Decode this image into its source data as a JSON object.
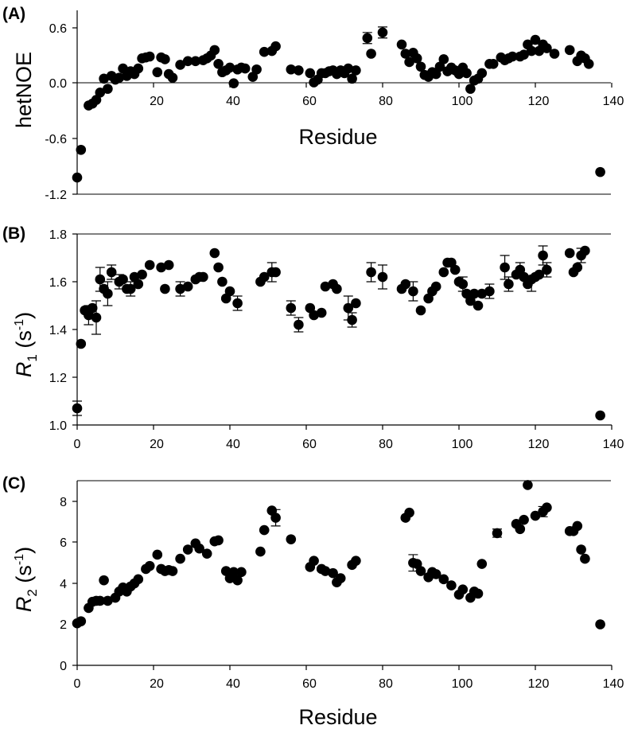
{
  "figure_labels": [
    "(A)",
    "(B)",
    "(C)"
  ],
  "chart_data": [
    {
      "type": "scatter",
      "panel": "(A)",
      "xlabel": "Residue",
      "ylabel": "hetNOE",
      "xlim": [
        0,
        140
      ],
      "ylim": [
        -1.2,
        0.9
      ],
      "xticks": [
        "20",
        "40",
        "60",
        "80",
        "100",
        "120",
        "140"
      ],
      "yticks": [
        "0.6",
        "0.0",
        "-0.6",
        "-1.2"
      ],
      "ytick_values": [
        0.6,
        0.0,
        -0.6,
        -1.2
      ],
      "x": [
        0,
        1,
        3,
        4,
        5,
        6,
        7,
        8,
        9,
        10,
        11,
        12,
        13,
        14,
        15,
        16,
        17,
        18,
        19,
        21,
        22,
        23,
        24,
        25,
        27,
        29,
        31,
        33,
        34,
        35,
        36,
        37,
        38,
        39,
        40,
        41,
        42,
        43,
        44,
        46,
        47,
        49,
        51,
        52,
        56,
        58,
        61,
        62,
        63,
        64,
        65,
        66,
        67,
        68,
        69,
        70,
        71,
        72,
        73,
        76,
        77,
        80,
        85,
        86,
        87,
        88,
        89,
        90,
        91,
        92,
        93,
        94,
        95,
        96,
        97,
        98,
        99,
        100,
        101,
        102,
        103,
        104,
        105,
        106,
        108,
        109,
        111,
        112,
        113,
        114,
        116,
        117,
        118,
        119,
        120,
        121,
        122,
        123,
        125,
        129,
        131,
        132,
        133,
        134,
        137
      ],
      "y": [
        -1.02,
        -0.72,
        -0.24,
        -0.22,
        -0.18,
        -0.1,
        0.05,
        -0.06,
        0.08,
        0.04,
        0.06,
        0.16,
        0.08,
        0.13,
        0.1,
        0.16,
        0.27,
        0.28,
        0.29,
        0.12,
        0.28,
        0.26,
        0.1,
        0.06,
        0.2,
        0.24,
        0.24,
        0.25,
        0.27,
        0.3,
        0.36,
        0.21,
        0.12,
        0.14,
        0.17,
        0.0,
        0.15,
        0.17,
        0.16,
        0.07,
        0.15,
        0.34,
        0.35,
        0.4,
        0.15,
        0.14,
        0.11,
        0.01,
        0.04,
        0.11,
        0.11,
        0.13,
        0.14,
        0.1,
        0.14,
        0.11,
        0.16,
        0.05,
        0.14,
        0.49,
        0.32,
        0.55,
        0.42,
        0.32,
        0.23,
        0.33,
        0.27,
        0.18,
        0.09,
        0.07,
        0.12,
        0.1,
        0.18,
        0.26,
        0.13,
        0.17,
        0.14,
        0.1,
        0.17,
        0.11,
        -0.06,
        0.03,
        0.05,
        0.11,
        0.21,
        0.21,
        0.28,
        0.25,
        0.27,
        0.29,
        0.29,
        0.31,
        0.42,
        0.35,
        0.47,
        0.35,
        0.42,
        0.38,
        0.32,
        0.36,
        0.24,
        0.3,
        0.27,
        0.21,
        -0.96
      ],
      "error_bars": [
        {
          "x": 76,
          "y": 0.49,
          "err": 0.06
        },
        {
          "x": 80,
          "y": 0.55,
          "err": 0.06
        }
      ]
    },
    {
      "type": "scatter",
      "panel": "(B)",
      "xlabel": "",
      "ylabel": "R1 (s-1)",
      "ylabel_parts": {
        "symbol": "R",
        "sub": "1",
        "unit_open": " (s",
        "sup": "-1",
        "unit_close": ")"
      },
      "xlim": [
        0,
        140
      ],
      "ylim": [
        1.0,
        1.8
      ],
      "xticks": [
        "0",
        "20",
        "40",
        "60",
        "80",
        "100",
        "120",
        "140"
      ],
      "yticks": [
        "1.0",
        "1.2",
        "1.4",
        "1.6",
        "1.8"
      ],
      "ytick_values": [
        1.0,
        1.2,
        1.4,
        1.6,
        1.8
      ],
      "x": [
        0,
        1,
        2,
        3,
        4,
        5,
        6,
        7,
        8,
        9,
        11,
        12,
        13,
        14,
        15,
        16,
        17,
        19,
        22,
        23,
        24,
        27,
        29,
        31,
        32,
        33,
        36,
        37,
        38,
        39,
        40,
        42,
        48,
        49,
        51,
        52,
        56,
        58,
        61,
        62,
        64,
        65,
        67,
        68,
        71,
        72,
        73,
        77,
        80,
        85,
        86,
        88,
        90,
        92,
        93,
        94,
        96,
        97,
        98,
        99,
        100,
        101,
        102,
        103,
        104,
        105,
        106,
        108,
        112,
        113,
        115,
        116,
        117,
        118,
        119,
        120,
        121,
        122,
        123,
        129,
        130,
        131,
        132,
        133,
        137
      ],
      "y": [
        1.07,
        1.34,
        1.48,
        1.46,
        1.49,
        1.45,
        1.61,
        1.57,
        1.55,
        1.64,
        1.6,
        1.61,
        1.57,
        1.57,
        1.62,
        1.59,
        1.63,
        1.67,
        1.66,
        1.57,
        1.67,
        1.57,
        1.58,
        1.61,
        1.62,
        1.62,
        1.72,
        1.66,
        1.6,
        1.53,
        1.56,
        1.51,
        1.6,
        1.62,
        1.64,
        1.64,
        1.49,
        1.42,
        1.49,
        1.46,
        1.47,
        1.58,
        1.59,
        1.57,
        1.49,
        1.44,
        1.51,
        1.64,
        1.62,
        1.57,
        1.59,
        1.56,
        1.48,
        1.53,
        1.56,
        1.58,
        1.64,
        1.68,
        1.68,
        1.65,
        1.6,
        1.59,
        1.55,
        1.52,
        1.55,
        1.5,
        1.55,
        1.56,
        1.66,
        1.59,
        1.63,
        1.65,
        1.62,
        1.59,
        1.61,
        1.62,
        1.63,
        1.71,
        1.65,
        1.72,
        1.64,
        1.66,
        1.71,
        1.73,
        1.04
      ],
      "error_bars": [
        {
          "x": 0,
          "y": 1.07,
          "err": 0.03
        },
        {
          "x": 3,
          "y": 1.46,
          "err": 0.04
        },
        {
          "x": 5,
          "y": 1.45,
          "err": 0.07
        },
        {
          "x": 6,
          "y": 1.61,
          "err": 0.05
        },
        {
          "x": 8,
          "y": 1.55,
          "err": 0.05
        },
        {
          "x": 9,
          "y": 1.64,
          "err": 0.03
        },
        {
          "x": 11,
          "y": 1.6,
          "err": 0.03
        },
        {
          "x": 14,
          "y": 1.57,
          "err": 0.03
        },
        {
          "x": 27,
          "y": 1.57,
          "err": 0.03
        },
        {
          "x": 42,
          "y": 1.51,
          "err": 0.03
        },
        {
          "x": 51,
          "y": 1.64,
          "err": 0.04
        },
        {
          "x": 56,
          "y": 1.49,
          "err": 0.03
        },
        {
          "x": 58,
          "y": 1.42,
          "err": 0.03
        },
        {
          "x": 71,
          "y": 1.49,
          "err": 0.05
        },
        {
          "x": 72,
          "y": 1.44,
          "err": 0.03
        },
        {
          "x": 77,
          "y": 1.64,
          "err": 0.04
        },
        {
          "x": 80,
          "y": 1.62,
          "err": 0.05
        },
        {
          "x": 88,
          "y": 1.56,
          "err": 0.04
        },
        {
          "x": 101,
          "y": 1.59,
          "err": 0.03
        },
        {
          "x": 108,
          "y": 1.56,
          "err": 0.03
        },
        {
          "x": 112,
          "y": 1.66,
          "err": 0.05
        },
        {
          "x": 113,
          "y": 1.59,
          "err": 0.03
        },
        {
          "x": 116,
          "y": 1.65,
          "err": 0.03
        },
        {
          "x": 119,
          "y": 1.59,
          "err": 0.03
        },
        {
          "x": 122,
          "y": 1.71,
          "err": 0.04
        },
        {
          "x": 123,
          "y": 1.65,
          "err": 0.03
        },
        {
          "x": 132,
          "y": 1.71,
          "err": 0.03
        }
      ]
    },
    {
      "type": "scatter",
      "panel": "(C)",
      "xlabel": "Residue",
      "ylabel": "R2 (s-1)",
      "ylabel_parts": {
        "symbol": "R",
        "sub": "2",
        "unit_open": " (s",
        "sup": "-1",
        "unit_close": ")"
      },
      "xlim": [
        0,
        140
      ],
      "ylim": [
        0,
        9
      ],
      "xticks": [
        "0",
        "20",
        "40",
        "60",
        "80",
        "100",
        "120",
        "140"
      ],
      "yticks": [
        "0",
        "2",
        "4",
        "6",
        "8"
      ],
      "ytick_values": [
        0,
        2,
        4,
        6,
        8
      ],
      "x": [
        0,
        1,
        3,
        4,
        5,
        6,
        7,
        8,
        10,
        11,
        12,
        13,
        14,
        15,
        16,
        18,
        19,
        21,
        22,
        23,
        24,
        25,
        27,
        29,
        31,
        32,
        34,
        36,
        37,
        39,
        40,
        41,
        42,
        43,
        48,
        49,
        51,
        52,
        56,
        61,
        62,
        64,
        65,
        67,
        68,
        69,
        72,
        73,
        86,
        87,
        88,
        89,
        90,
        92,
        93,
        94,
        96,
        98,
        100,
        101,
        103,
        104,
        105,
        106,
        110,
        115,
        116,
        117,
        118,
        120,
        122,
        123,
        129,
        130,
        131,
        132,
        133,
        137
      ],
      "y": [
        2.05,
        2.15,
        2.8,
        3.1,
        3.15,
        3.15,
        4.15,
        3.15,
        3.3,
        3.6,
        3.8,
        3.6,
        3.85,
        4.0,
        4.2,
        4.7,
        4.85,
        5.4,
        4.7,
        4.6,
        4.65,
        4.6,
        5.2,
        5.65,
        5.95,
        5.7,
        5.45,
        6.05,
        6.1,
        4.6,
        4.25,
        4.55,
        4.15,
        4.55,
        5.55,
        6.6,
        7.55,
        7.2,
        6.15,
        4.8,
        5.1,
        4.7,
        4.6,
        4.5,
        4.05,
        4.25,
        4.9,
        5.1,
        7.2,
        7.45,
        5.0,
        4.95,
        4.6,
        4.3,
        4.55,
        4.45,
        4.2,
        3.9,
        3.45,
        3.7,
        3.3,
        3.6,
        3.5,
        4.95,
        6.45,
        6.9,
        6.65,
        7.1,
        8.8,
        7.3,
        7.5,
        7.7,
        6.55,
        6.55,
        6.8,
        5.65,
        5.2,
        2.0
      ],
      "error_bars": [
        {
          "x": 52,
          "y": 7.2,
          "err": 0.4
        },
        {
          "x": 88,
          "y": 5.0,
          "err": 0.4
        },
        {
          "x": 110,
          "y": 6.45,
          "err": 0.2
        },
        {
          "x": 122,
          "y": 7.5,
          "err": 0.25
        }
      ]
    }
  ]
}
